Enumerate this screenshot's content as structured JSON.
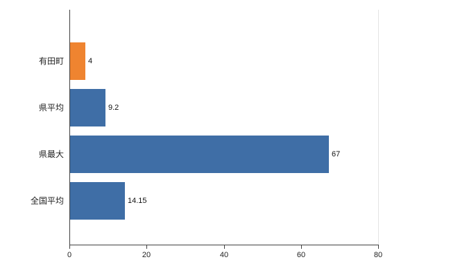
{
  "chart_data": {
    "type": "bar",
    "orientation": "horizontal",
    "title": "",
    "xlabel": "",
    "ylabel": "",
    "categories": [
      "有田町",
      "県平均",
      "県最大",
      "全国平均"
    ],
    "values": [
      4,
      9.2,
      67,
      14.15
    ],
    "value_labels": [
      "4",
      "9.2",
      "67",
      "14.15"
    ],
    "bar_colors": [
      "#ef8430",
      "#3f6ea6",
      "#3f6ea6",
      "#3f6ea6"
    ],
    "xlim": [
      0,
      80
    ],
    "x_ticks": [
      "0",
      "20",
      "40",
      "60",
      "80"
    ],
    "x_tick_values": [
      0,
      20,
      40,
      60,
      80
    ],
    "grid": false,
    "legend_position": "none",
    "colors": {
      "axis": "#404040",
      "tick_label": "#222222",
      "value_label": "#111111",
      "background": "#ffffff"
    }
  }
}
